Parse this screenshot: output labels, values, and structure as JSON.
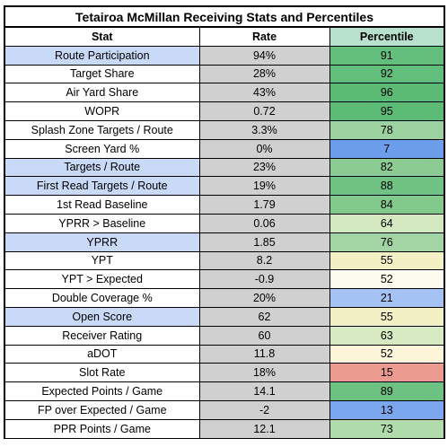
{
  "title": "Tetairoa McMillan Receiving Stats and Percentiles",
  "columns": {
    "stat": "Stat",
    "rate": "Rate",
    "percentile": "Percentile"
  },
  "rows": [
    {
      "stat": "Route Participation",
      "rate": "94%",
      "percentile": "91",
      "highlight": true,
      "color": "#63be7b"
    },
    {
      "stat": "Target Share",
      "rate": "28%",
      "percentile": "92",
      "highlight": false,
      "color": "#62be7b"
    },
    {
      "stat": "Air Yard Share",
      "rate": "43%",
      "percentile": "96",
      "highlight": false,
      "color": "#5bbb75"
    },
    {
      "stat": "WOPR",
      "rate": "0.72",
      "percentile": "95",
      "highlight": false,
      "color": "#5cbc76"
    },
    {
      "stat": "Splash Zone Targets / Route",
      "rate": "3.3%",
      "percentile": "78",
      "highlight": false,
      "color": "#9bd29f"
    },
    {
      "stat": "Screen Yard %",
      "rate": "0%",
      "percentile": "7",
      "highlight": false,
      "color": "#6d9eeb"
    },
    {
      "stat": "Targets / Route",
      "rate": "23%",
      "percentile": "82",
      "highlight": true,
      "color": "#8ccc93"
    },
    {
      "stat": "First Read Targets / Route",
      "rate": "19%",
      "percentile": "88",
      "highlight": true,
      "color": "#71c384"
    },
    {
      "stat": "1st Read Baseline",
      "rate": "1.79",
      "percentile": "84",
      "highlight": false,
      "color": "#82c98c"
    },
    {
      "stat": "YPRR > Baseline",
      "rate": "0.06",
      "percentile": "64",
      "highlight": false,
      "color": "#d3e8bf"
    },
    {
      "stat": "YPRR",
      "rate": "1.85",
      "percentile": "76",
      "highlight": true,
      "color": "#a3d5a4"
    },
    {
      "stat": "YPT",
      "rate": "8.2",
      "percentile": "55",
      "highlight": false,
      "color": "#f4f0c6"
    },
    {
      "stat": "YPT > Expected",
      "rate": "-0.9",
      "percentile": "52",
      "highlight": false,
      "color": "#fdfbef"
    },
    {
      "stat": "Double Coverage %",
      "rate": "20%",
      "percentile": "21",
      "highlight": false,
      "color": "#a4c2f4"
    },
    {
      "stat": "Open Score",
      "rate": "62",
      "percentile": "55",
      "highlight": true,
      "color": "#f4f0c6"
    },
    {
      "stat": "Receiver Rating",
      "rate": "60",
      "percentile": "63",
      "highlight": false,
      "color": "#d7eac1"
    },
    {
      "stat": "aDOT",
      "rate": "11.8",
      "percentile": "52",
      "highlight": false,
      "color": "#fdf5d9"
    },
    {
      "stat": "Slot Rate",
      "rate": "18%",
      "percentile": "15",
      "highlight": false,
      "color": "#ea9a8f"
    },
    {
      "stat": "Expected Points / Game",
      "rate": "14.1",
      "percentile": "89",
      "highlight": false,
      "color": "#6dc281"
    },
    {
      "stat": "FP over Expected / Game",
      "rate": "-2",
      "percentile": "13",
      "highlight": false,
      "color": "#7ba7ee"
    },
    {
      "stat": "PPR Points / Game",
      "rate": "12.1",
      "percentile": "73",
      "highlight": false,
      "color": "#b0dbab"
    }
  ]
}
